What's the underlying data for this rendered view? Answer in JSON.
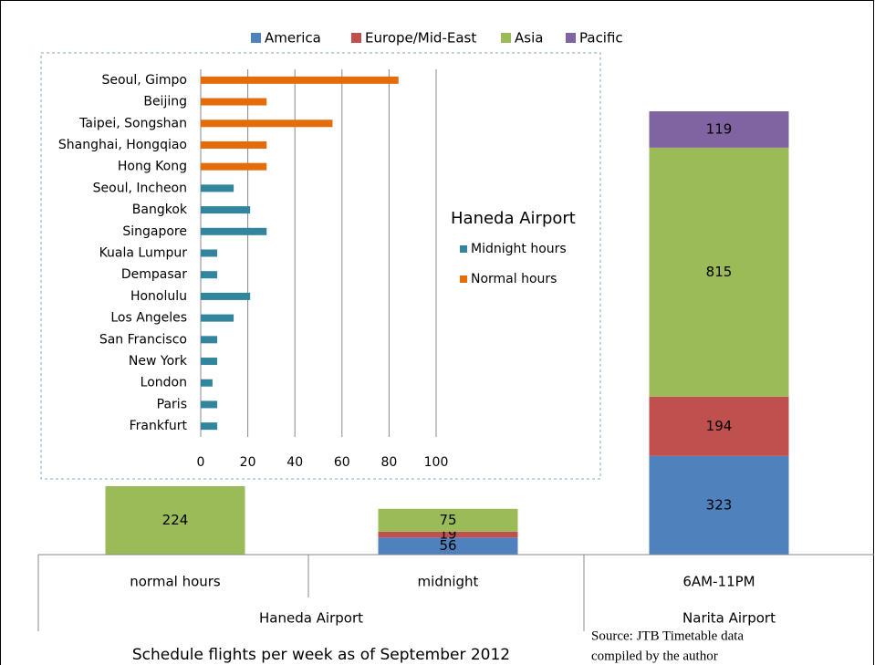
{
  "chart_data": [
    {
      "type": "bar",
      "stacked": true,
      "legend": "top",
      "categories": [
        "normal hours",
        "midnight",
        "6AM-11PM"
      ],
      "groups": [
        {
          "label": "Haneda Airport",
          "span": 2
        },
        {
          "label": "Narita Airport",
          "span": 1
        }
      ],
      "series": [
        {
          "name": "America",
          "color": "#4f81bd",
          "values": [
            null,
            56,
            323
          ]
        },
        {
          "name": "Europe/Mid-East",
          "color": "#c0504d",
          "values": [
            null,
            19,
            194
          ]
        },
        {
          "name": "Asia",
          "color": "#9bbb59",
          "values": [
            224,
            75,
            815
          ]
        },
        {
          "name": "Pacific",
          "color": "#8064a2",
          "values": [
            null,
            null,
            119
          ]
        }
      ],
      "xlabel": "Schedule flights per week as of September 2012",
      "source": [
        "Source: JTB Timetable data",
        "compiled by the author"
      ]
    },
    {
      "type": "barh",
      "legend_title": "Haneda Airport",
      "legend": "right",
      "categories": [
        "Seoul, Gimpo",
        "Beijing",
        "Taipei, Songshan",
        "Shanghai, Hongqiao",
        "Hong Kong",
        "Seoul, Incheon",
        "Bangkok",
        "Singapore",
        "Kuala Lumpur",
        "Dempasar",
        "Honolulu",
        "Los Angeles",
        "San Francisco",
        "New York",
        "London",
        "Paris",
        "Frankfurt"
      ],
      "series": [
        {
          "name": "Midnight hours",
          "color": "#31859c",
          "values": [
            null,
            null,
            null,
            null,
            null,
            14,
            21,
            28,
            7,
            7,
            21,
            14,
            7,
            7,
            5,
            7,
            7
          ]
        },
        {
          "name": "Normal hours",
          "color": "#e46c0a",
          "values": [
            84,
            28,
            56,
            28,
            28,
            null,
            null,
            null,
            null,
            null,
            null,
            null,
            null,
            null,
            null,
            null,
            null
          ]
        }
      ],
      "xlim": [
        0,
        100
      ],
      "xticks": [
        0,
        20,
        40,
        60,
        80,
        100
      ],
      "grid": true
    }
  ]
}
